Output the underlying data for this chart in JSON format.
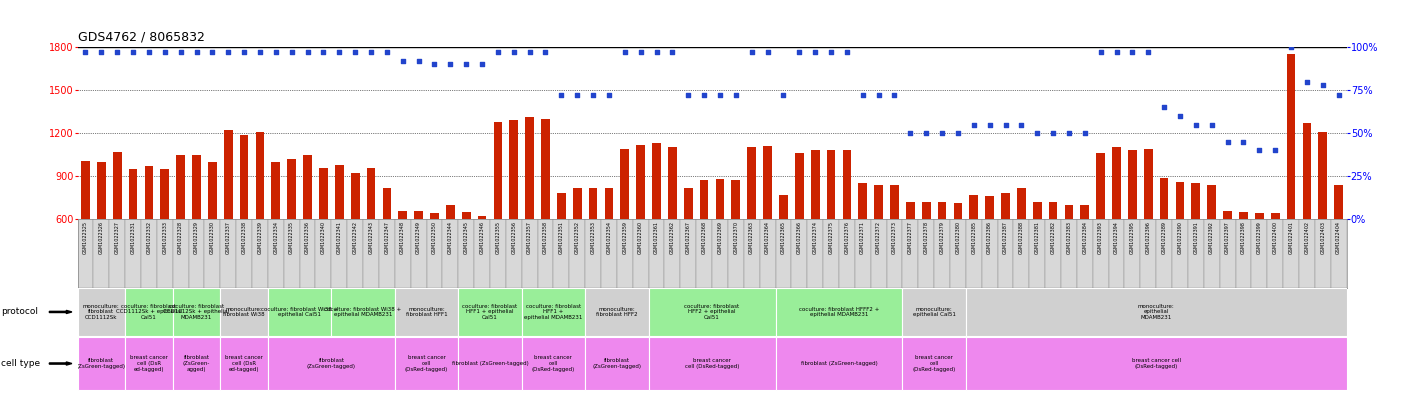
{
  "title": "GDS4762 / 8065832",
  "samples": [
    "GSM1022325",
    "GSM1022326",
    "GSM1022327",
    "GSM1022331",
    "GSM1022332",
    "GSM1022333",
    "GSM1022328",
    "GSM1022329",
    "GSM1022330",
    "GSM1022337",
    "GSM1022338",
    "GSM1022339",
    "GSM1022334",
    "GSM1022335",
    "GSM1022336",
    "GSM1022340",
    "GSM1022341",
    "GSM1022342",
    "GSM1022343",
    "GSM1022347",
    "GSM1022348",
    "GSM1022349",
    "GSM1022350",
    "GSM1022344",
    "GSM1022345",
    "GSM1022346",
    "GSM1022355",
    "GSM1022356",
    "GSM1022357",
    "GSM1022358",
    "GSM1022351",
    "GSM1022352",
    "GSM1022353",
    "GSM1022354",
    "GSM1022359",
    "GSM1022360",
    "GSM1022361",
    "GSM1022362",
    "GSM1022367",
    "GSM1022368",
    "GSM1022369",
    "GSM1022370",
    "GSM1022363",
    "GSM1022364",
    "GSM1022365",
    "GSM1022366",
    "GSM1022374",
    "GSM1022375",
    "GSM1022376",
    "GSM1022371",
    "GSM1022372",
    "GSM1022373",
    "GSM1022377",
    "GSM1022378",
    "GSM1022379",
    "GSM1022380",
    "GSM1022385",
    "GSM1022386",
    "GSM1022387",
    "GSM1022388",
    "GSM1022381",
    "GSM1022382",
    "GSM1022383",
    "GSM1022384",
    "GSM1022393",
    "GSM1022394",
    "GSM1022395",
    "GSM1022396",
    "GSM1022389",
    "GSM1022390",
    "GSM1022391",
    "GSM1022392",
    "GSM1022397",
    "GSM1022398",
    "GSM1022399",
    "GSM1022400",
    "GSM1022401",
    "GSM1022402",
    "GSM1022403",
    "GSM1022404"
  ],
  "counts": [
    1005,
    1000,
    1070,
    950,
    970,
    950,
    1050,
    1050,
    1000,
    1220,
    1190,
    1210,
    1000,
    1020,
    1050,
    960,
    980,
    920,
    960,
    820,
    660,
    660,
    640,
    700,
    650,
    620,
    1280,
    1290,
    1310,
    1300,
    780,
    820,
    820,
    820,
    1090,
    1120,
    1130,
    1100,
    820,
    870,
    880,
    870,
    1100,
    1110,
    770,
    1060,
    1080,
    1085,
    1085,
    850,
    840,
    840,
    720,
    720,
    720,
    710,
    770,
    760,
    780,
    820,
    720,
    720,
    700,
    700,
    1060,
    1100,
    1080,
    1090,
    890,
    860,
    850,
    840,
    660,
    650,
    640,
    640,
    1750,
    1270,
    1210,
    840
  ],
  "percentiles": [
    97,
    97,
    97,
    97,
    97,
    97,
    97,
    97,
    97,
    97,
    97,
    97,
    97,
    97,
    97,
    97,
    97,
    97,
    97,
    97,
    92,
    92,
    90,
    90,
    90,
    90,
    97,
    97,
    97,
    97,
    72,
    72,
    72,
    72,
    97,
    97,
    97,
    97,
    72,
    72,
    72,
    72,
    97,
    97,
    72,
    97,
    97,
    97,
    97,
    72,
    72,
    72,
    50,
    50,
    50,
    50,
    55,
    55,
    55,
    55,
    50,
    50,
    50,
    50,
    97,
    97,
    97,
    97,
    65,
    60,
    55,
    55,
    45,
    45,
    40,
    40,
    100,
    80,
    78,
    72
  ],
  "ylim": [
    600,
    1800
  ],
  "yticks": [
    600,
    900,
    1200,
    1500,
    1800
  ],
  "pct_yticks": [
    0,
    25,
    50,
    75,
    100
  ],
  "bar_color": "#cc2200",
  "dot_color": "#2244cc",
  "bg_chart": "#ffffff",
  "bg_labels": "#d8d8d8",
  "proto_sections": [
    [
      0,
      3,
      "#d0d0d0",
      "monoculture:\nfibroblast\nCCD1112Sk"
    ],
    [
      3,
      6,
      "#99ee99",
      "coculture: fibroblast\nCCD1112Sk + epithelial\nCal51"
    ],
    [
      6,
      9,
      "#99ee99",
      "coculture: fibroblast\nCCD1112Sk + epithelial\nMDAMB231"
    ],
    [
      9,
      12,
      "#d0d0d0",
      "monoculture:\nfibroblast Wi38"
    ],
    [
      12,
      16,
      "#99ee99",
      "coculture: fibroblast Wi38 +\nepithelial Cal51"
    ],
    [
      16,
      20,
      "#99ee99",
      "coculture: fibroblast Wi38 +\nepithelial MDAMB231"
    ],
    [
      20,
      24,
      "#d0d0d0",
      "monoculture:\nfibroblast HFF1"
    ],
    [
      24,
      28,
      "#99ee99",
      "coculture: fibroblast\nHFF1 + epithelial\nCal51"
    ],
    [
      28,
      32,
      "#99ee99",
      "coculture: fibroblast\nHFF1 +\nepithelial MDAMB231"
    ],
    [
      32,
      36,
      "#d0d0d0",
      "monoculture:\nfibroblast HFF2"
    ],
    [
      36,
      44,
      "#99ee99",
      "coculture: fibroblast\nHFF2 + epithelial\nCal51"
    ],
    [
      44,
      52,
      "#99ee99",
      "coculture: fibroblast HFFF2 +\nepithelial MDAMB231"
    ],
    [
      52,
      56,
      "#d0d0d0",
      "monoculture:\nepithelial Cal51"
    ],
    [
      56,
      80,
      "#d0d0d0",
      "monoculture:\nepithelial\nMDAMB231"
    ]
  ],
  "cell_sections": [
    [
      0,
      3,
      "#ee88ee",
      "fibroblast\n(ZsGreen-tagged)"
    ],
    [
      3,
      6,
      "#ee88ee",
      "breast cancer\ncell (DsR\ned-tagged)"
    ],
    [
      6,
      9,
      "#ee88ee",
      "fibroblast\n(ZsGreen-\nagged)"
    ],
    [
      9,
      12,
      "#ee88ee",
      "breast cancer\ncell (DsR\ned-tagged)"
    ],
    [
      12,
      20,
      "#ee88ee",
      "fibroblast\n(ZsGreen-tagged)"
    ],
    [
      20,
      24,
      "#ee88ee",
      "breast cancer\ncell\n(DsRed-tagged)"
    ],
    [
      24,
      28,
      "#ee88ee",
      "fibroblast (ZsGreen-tagged)"
    ],
    [
      28,
      32,
      "#ee88ee",
      "breast cancer\ncell\n(DsRed-tagged)"
    ],
    [
      32,
      36,
      "#ee88ee",
      "fibroblast\n(ZsGreen-tagged)"
    ],
    [
      36,
      44,
      "#ee88ee",
      "breast cancer\ncell (DsRed-tagged)"
    ],
    [
      44,
      52,
      "#ee88ee",
      "fibroblast (ZsGreen-tagged)"
    ],
    [
      52,
      56,
      "#ee88ee",
      "breast cancer\ncell\n(DsRed-tagged)"
    ],
    [
      56,
      80,
      "#ee88ee",
      "breast cancer cell\n(DsRed-tagged)"
    ]
  ]
}
